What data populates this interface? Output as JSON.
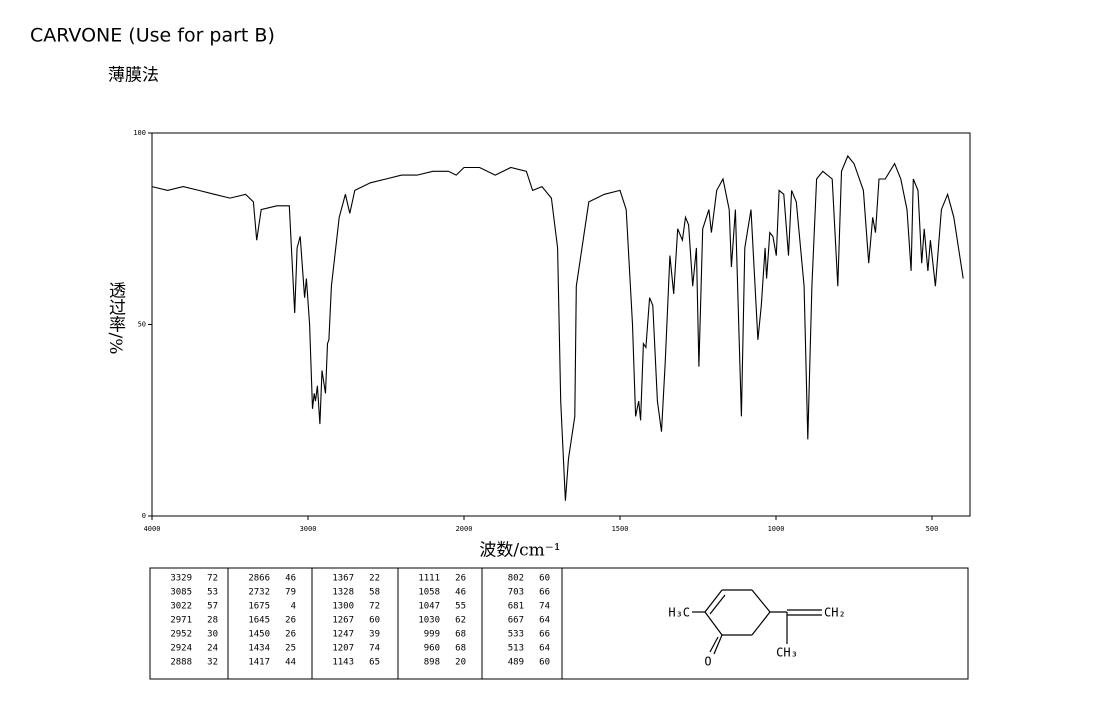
{
  "chart_data": {
    "type": "line",
    "title": "CARVONE (Use for part B)",
    "subtitle": "薄膜法",
    "x_label": "波数/cm⁻¹",
    "y_label": "透过率/%",
    "xlim": [
      4000,
      400
    ],
    "xticks": [
      4000,
      3000,
      2000,
      1500,
      1000,
      500
    ],
    "ylim": [
      0,
      100
    ],
    "yticks": [
      0,
      50,
      100
    ],
    "series": [
      {
        "name": "Carvone",
        "color": "#000000",
        "x": [
          4000,
          3900,
          3800,
          3700,
          3600,
          3500,
          3400,
          3350,
          3329,
          3300,
          3200,
          3120,
          3085,
          3070,
          3050,
          3022,
          3010,
          2990,
          2971,
          2960,
          2952,
          2940,
          2924,
          2910,
          2888,
          2875,
          2866,
          2850,
          2800,
          2760,
          2732,
          2700,
          2600,
          2500,
          2400,
          2300,
          2200,
          2100,
          2050,
          2000,
          1950,
          1900,
          1850,
          1800,
          1780,
          1750,
          1720,
          1700,
          1690,
          1675,
          1665,
          1645,
          1640,
          1600,
          1550,
          1500,
          1480,
          1460,
          1450,
          1440,
          1434,
          1425,
          1417,
          1405,
          1395,
          1380,
          1367,
          1355,
          1340,
          1328,
          1315,
          1300,
          1290,
          1280,
          1267,
          1255,
          1247,
          1235,
          1215,
          1207,
          1190,
          1170,
          1150,
          1143,
          1130,
          1111,
          1100,
          1080,
          1058,
          1047,
          1035,
          1030,
          1020,
          1010,
          999,
          990,
          975,
          960,
          950,
          935,
          910,
          898,
          885,
          870,
          850,
          820,
          802,
          790,
          770,
          750,
          720,
          703,
          690,
          681,
          670,
          650,
          620,
          600,
          580,
          567,
          560,
          545,
          533,
          525,
          513,
          505,
          489,
          470,
          450,
          430,
          400
        ],
        "values": [
          86,
          85,
          86,
          85,
          84,
          83,
          84,
          82,
          72,
          80,
          81,
          81,
          53,
          70,
          73,
          57,
          62,
          50,
          28,
          32,
          30,
          34,
          24,
          38,
          32,
          45,
          46,
          60,
          78,
          84,
          79,
          85,
          87,
          88,
          89,
          89,
          90,
          90,
          89,
          91,
          91,
          89,
          91,
          90,
          85,
          86,
          83,
          70,
          30,
          4,
          15,
          26,
          60,
          82,
          84,
          85,
          80,
          50,
          26,
          30,
          25,
          45,
          44,
          57,
          55,
          30,
          22,
          40,
          68,
          58,
          75,
          72,
          78,
          76,
          60,
          70,
          39,
          75,
          80,
          74,
          85,
          88,
          80,
          65,
          80,
          26,
          70,
          80,
          46,
          55,
          70,
          62,
          74,
          73,
          68,
          85,
          84,
          68,
          85,
          82,
          60,
          20,
          60,
          88,
          90,
          88,
          60,
          90,
          94,
          92,
          85,
          66,
          78,
          74,
          88,
          88,
          92,
          88,
          80,
          64,
          88,
          85,
          66,
          75,
          64,
          72,
          60,
          80,
          84,
          78,
          62
        ]
      }
    ]
  },
  "peak_table": [
    [
      [
        3329,
        72
      ],
      [
        3085,
        53
      ],
      [
        3022,
        57
      ],
      [
        2971,
        28
      ],
      [
        2952,
        30
      ],
      [
        2924,
        24
      ],
      [
        2888,
        32
      ]
    ],
    [
      [
        2866,
        46
      ],
      [
        2732,
        79
      ],
      [
        1675,
        4
      ],
      [
        1645,
        26
      ],
      [
        1450,
        26
      ],
      [
        1434,
        25
      ],
      [
        1417,
        44
      ]
    ],
    [
      [
        1367,
        22
      ],
      [
        1328,
        58
      ],
      [
        1300,
        72
      ],
      [
        1267,
        60
      ],
      [
        1247,
        39
      ],
      [
        1207,
        74
      ],
      [
        1143,
        65
      ]
    ],
    [
      [
        1111,
        26
      ],
      [
        1058,
        46
      ],
      [
        1047,
        55
      ],
      [
        1030,
        62
      ],
      [
        999,
        68
      ],
      [
        960,
        68
      ],
      [
        898,
        20
      ]
    ],
    [
      [
        802,
        60
      ],
      [
        703,
        66
      ],
      [
        681,
        74
      ],
      [
        667,
        64
      ],
      [
        533,
        66
      ],
      [
        513,
        64
      ],
      [
        489,
        60
      ]
    ]
  ],
  "structure": {
    "labels": [
      "H₃C",
      "CH₂",
      "CH₃",
      "O"
    ]
  }
}
